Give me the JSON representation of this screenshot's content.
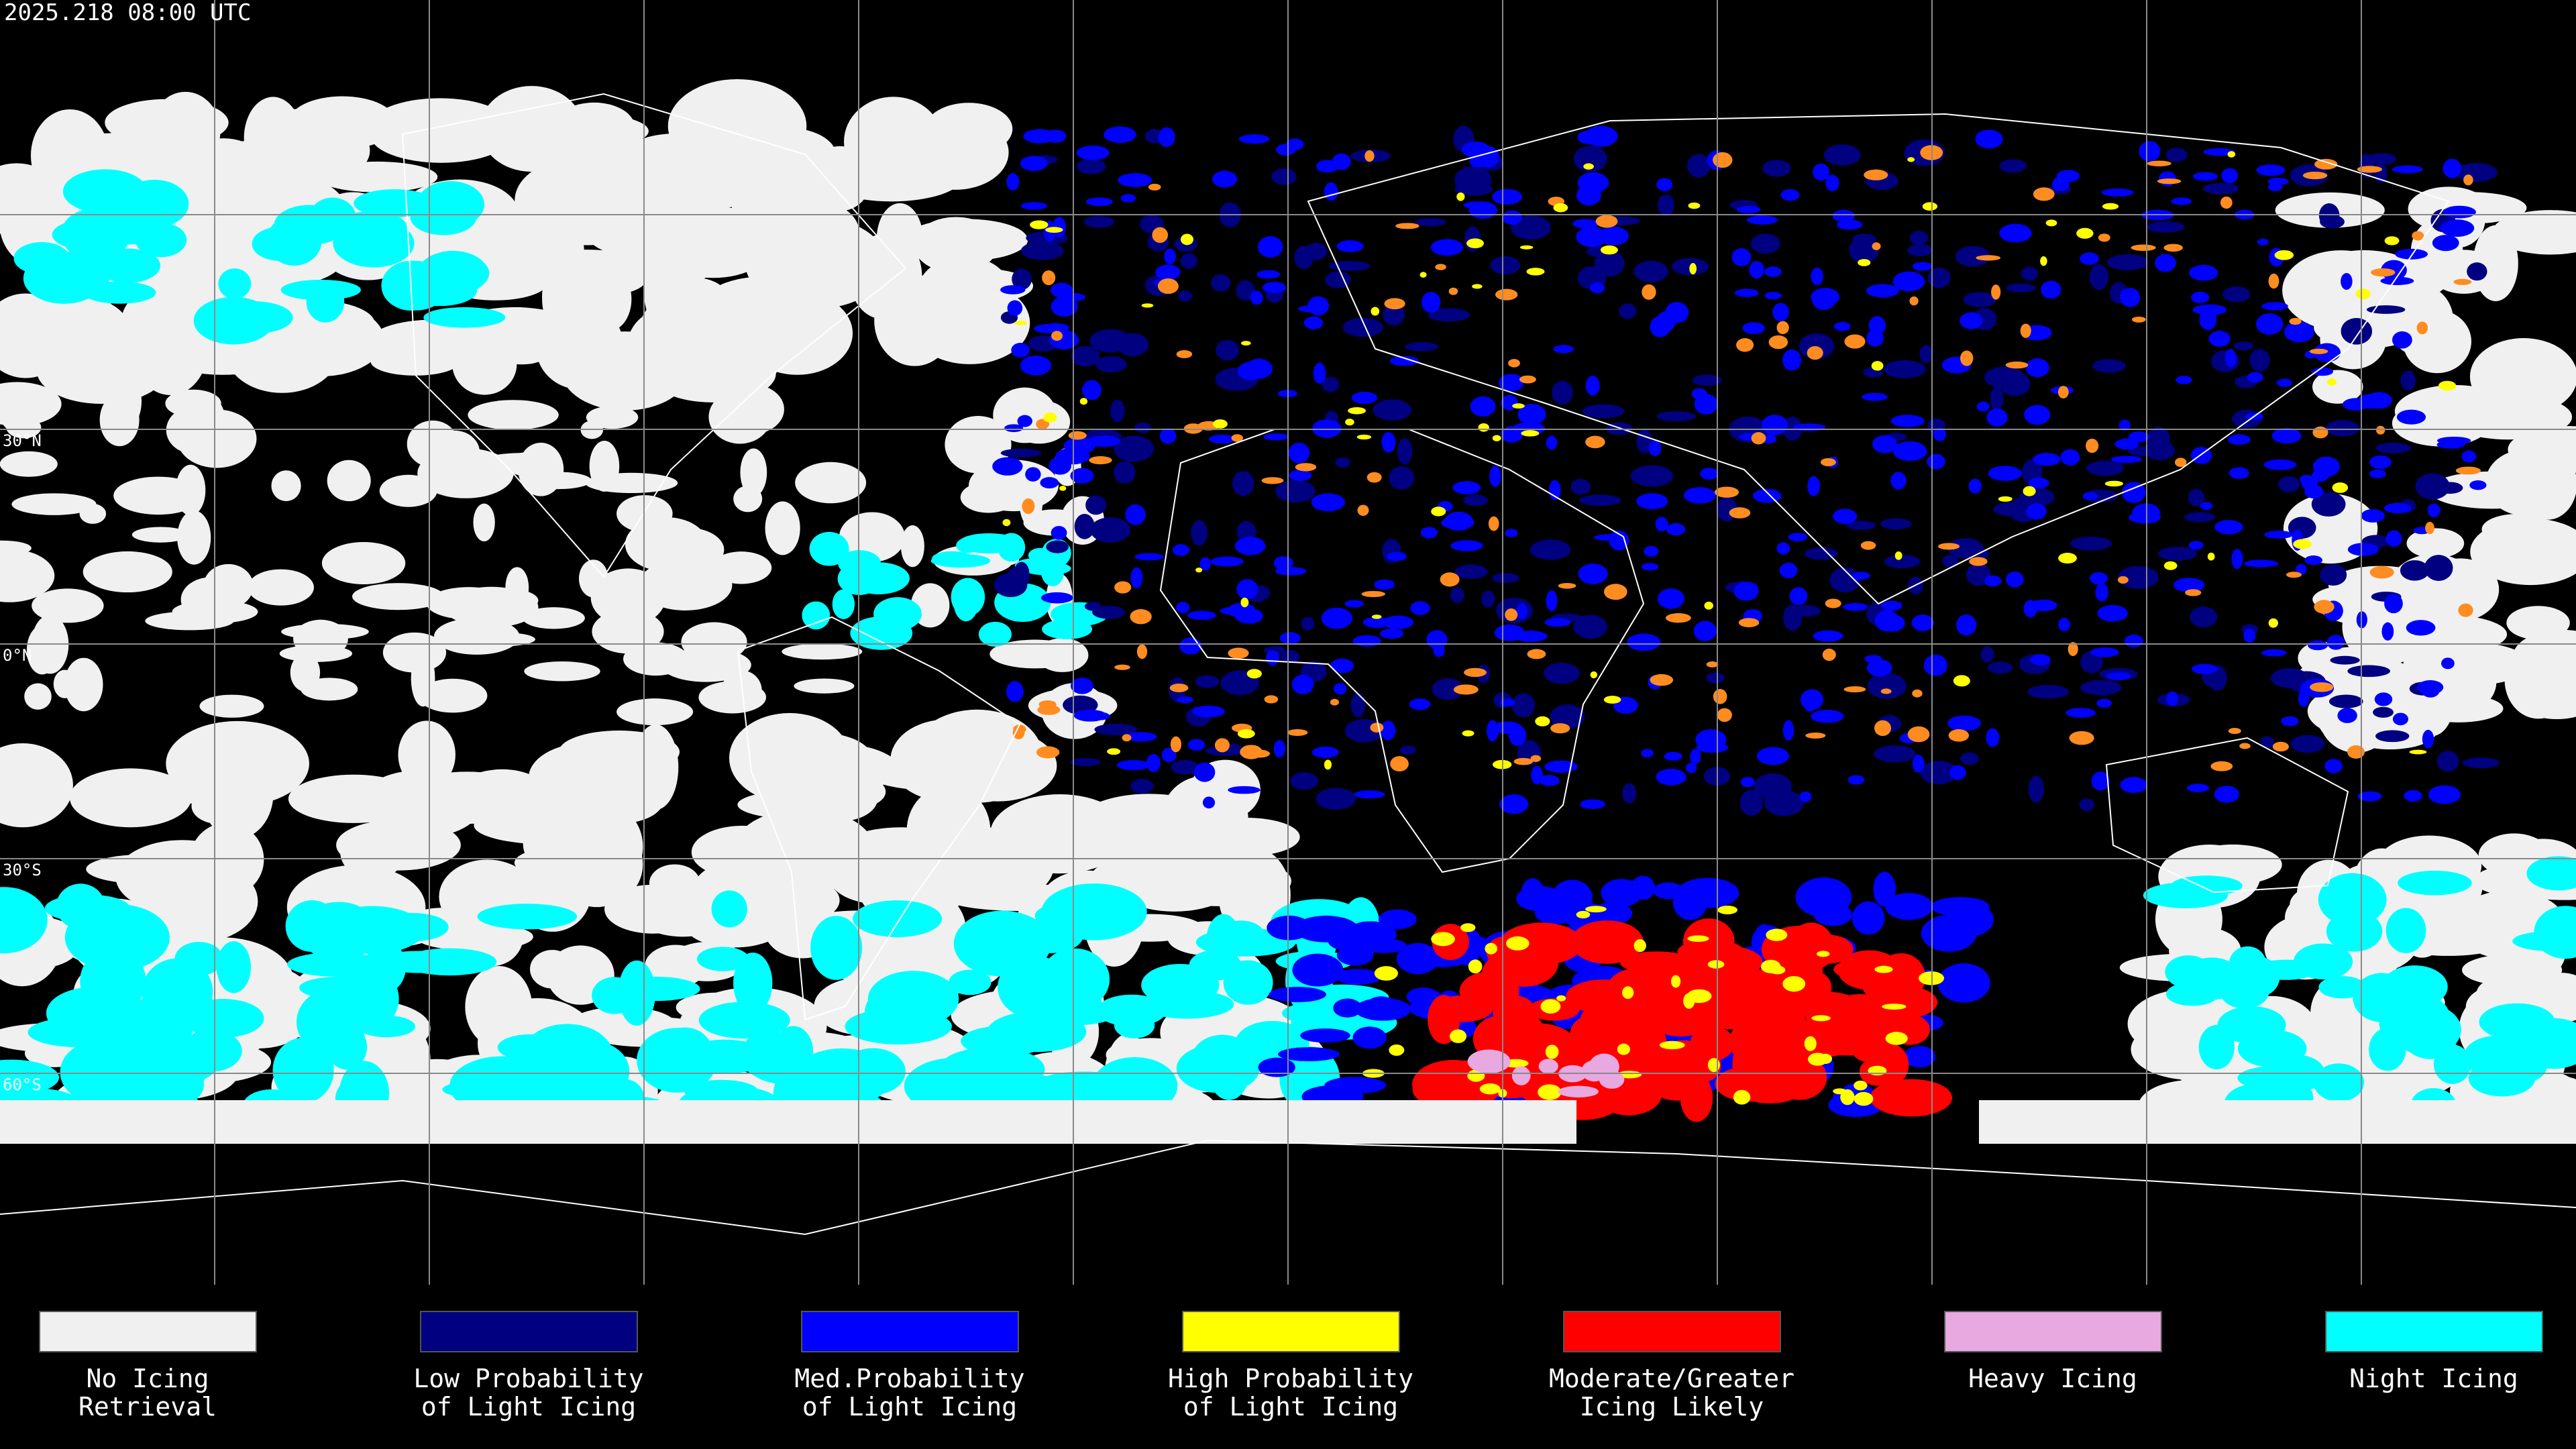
{
  "header": {
    "timestamp": "2025.218 08:00 UTC"
  },
  "map": {
    "lat_labels": [
      "30°N",
      "0°N",
      "30°S",
      "60°S"
    ]
  },
  "legend": {
    "items": [
      {
        "label": [
          "No Icing",
          "Retrieval"
        ],
        "color": "#f0f0f0"
      },
      {
        "label": [
          "Low Probability",
          "of Light Icing"
        ],
        "color": "#000080"
      },
      {
        "label": [
          "Med.Probability",
          "of Light Icing"
        ],
        "color": "#0000ff"
      },
      {
        "label": [
          "High Probability",
          "of Light Icing"
        ],
        "color": "#ffff00"
      },
      {
        "label": [
          "Moderate/Greater",
          "Icing Likely"
        ],
        "color": "#ff0000"
      },
      {
        "label": [
          "Heavy Icing"
        ],
        "color": "#e8a8e0"
      },
      {
        "label": [
          "Night Icing"
        ],
        "color": "#00ffff"
      }
    ]
  }
}
